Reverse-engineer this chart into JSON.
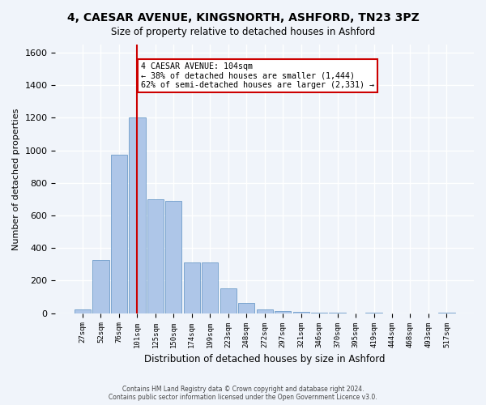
{
  "title_line1": "4, CAESAR AVENUE, KINGSNORTH, ASHFORD, TN23 3PZ",
  "title_line2": "Size of property relative to detached houses in Ashford",
  "xlabel": "Distribution of detached houses by size in Ashford",
  "ylabel": "Number of detached properties",
  "footer_line1": "Contains HM Land Registry data © Crown copyright and database right 2024.",
  "footer_line2": "Contains public sector information licensed under the Open Government Licence v3.0.",
  "annotation_line1": "4 CAESAR AVENUE: 104sqm",
  "annotation_line2": "← 38% of detached houses are smaller (1,444)",
  "annotation_line3": "62% of semi-detached houses are larger (2,331) →",
  "bar_labels": [
    "27sqm",
    "52sqm",
    "76sqm",
    "101sqm",
    "125sqm",
    "150sqm",
    "174sqm",
    "199sqm",
    "223sqm",
    "248sqm",
    "272sqm",
    "297sqm",
    "321sqm",
    "346sqm",
    "370sqm",
    "395sqm",
    "419sqm",
    "444sqm",
    "468sqm",
    "493sqm",
    "517sqm"
  ],
  "bar_values": [
    25,
    325,
    975,
    1200,
    700,
    690,
    310,
    310,
    155,
    65,
    25,
    15,
    10,
    5,
    5,
    0,
    5,
    0,
    0,
    0,
    5
  ],
  "bar_color": "#aec6e8",
  "bar_edgecolor": "#5a8fc2",
  "vline_x": 3,
  "vline_color": "#cc0000",
  "ylim": [
    0,
    1650
  ],
  "yticks": [
    0,
    200,
    400,
    600,
    800,
    1000,
    1200,
    1400,
    1600
  ],
  "annotation_box_edgecolor": "#cc0000",
  "annotation_box_facecolor": "#ffffff",
  "bg_color": "#f0f4fa",
  "grid_color": "#ffffff"
}
